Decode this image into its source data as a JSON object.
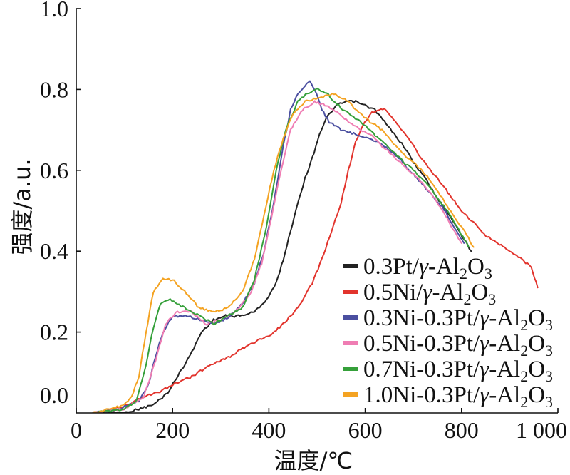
{
  "chart_data": {
    "type": "line",
    "xlabel": "温度/℃",
    "ylabel": "强度/a.u.",
    "xlim": [
      0,
      1000
    ],
    "ylim": [
      0,
      1.0
    ],
    "xticks": [
      0,
      200,
      400,
      600,
      800,
      1000
    ],
    "xtick_labels": [
      "0",
      "200",
      "400",
      "600",
      "800",
      "1 000"
    ],
    "yticks": [
      0,
      0.2,
      0.4,
      0.6,
      0.8,
      1.0
    ],
    "ytick_labels": [
      "0.0",
      "0.2",
      "0.4",
      "0.6",
      "0.8",
      "1.0"
    ],
    "grid": false,
    "legend": "bottom-right",
    "series": [
      {
        "name": "0.3Pt/γ-Al2O3",
        "color": "#222222",
        "x": [
          40,
          100,
          130,
          160,
          190,
          215,
          240,
          260,
          285,
          310,
          340,
          370,
          395,
          415,
          430,
          445,
          460,
          475,
          490,
          505,
          520,
          540,
          560,
          580,
          600,
          620,
          640,
          660,
          680,
          700,
          725,
          750,
          775,
          800,
          820
        ],
        "y": [
          0.0,
          0.0,
          0.01,
          0.02,
          0.05,
          0.1,
          0.15,
          0.2,
          0.23,
          0.24,
          0.24,
          0.25,
          0.28,
          0.32,
          0.38,
          0.45,
          0.52,
          0.58,
          0.63,
          0.69,
          0.73,
          0.76,
          0.77,
          0.77,
          0.76,
          0.75,
          0.72,
          0.69,
          0.66,
          0.62,
          0.58,
          0.53,
          0.49,
          0.44,
          0.4
        ]
      },
      {
        "name": "0.5Ni/γ-Al2O3",
        "color": "#e2342d",
        "x": [
          45,
          80,
          110,
          140,
          170,
          200,
          240,
          280,
          320,
          360,
          400,
          430,
          460,
          490,
          510,
          530,
          550,
          565,
          580,
          595,
          610,
          625,
          640,
          655,
          670,
          690,
          710,
          730,
          750,
          775,
          800,
          825,
          850,
          875,
          900,
          925,
          945,
          958
        ],
        "y": [
          0.0,
          0.01,
          0.02,
          0.04,
          0.05,
          0.07,
          0.09,
          0.12,
          0.14,
          0.17,
          0.19,
          0.22,
          0.26,
          0.32,
          0.38,
          0.45,
          0.52,
          0.6,
          0.67,
          0.71,
          0.74,
          0.75,
          0.75,
          0.73,
          0.71,
          0.68,
          0.64,
          0.61,
          0.58,
          0.54,
          0.5,
          0.47,
          0.44,
          0.42,
          0.4,
          0.38,
          0.36,
          0.31
        ]
      },
      {
        "name": "0.3Ni-0.3Pt/γ-Al2O3",
        "color": "#4b4fa0",
        "x": [
          35,
          90,
          130,
          150,
          165,
          180,
          200,
          230,
          260,
          290,
          320,
          345,
          370,
          390,
          410,
          430,
          445,
          460,
          475,
          485,
          495,
          510,
          525,
          550,
          580,
          610,
          640,
          670,
          700,
          730,
          760,
          785,
          805
        ],
        "y": [
          0.0,
          0.01,
          0.03,
          0.07,
          0.14,
          0.2,
          0.24,
          0.24,
          0.23,
          0.22,
          0.24,
          0.27,
          0.32,
          0.4,
          0.52,
          0.66,
          0.75,
          0.79,
          0.81,
          0.82,
          0.8,
          0.75,
          0.72,
          0.7,
          0.69,
          0.68,
          0.66,
          0.63,
          0.59,
          0.55,
          0.51,
          0.46,
          0.42
        ]
      },
      {
        "name": "0.5Ni-0.3Pt/γ-Al2O3",
        "color": "#ef7db3",
        "x": [
          35,
          100,
          140,
          165,
          185,
          210,
          240,
          270,
          300,
          330,
          360,
          385,
          405,
          425,
          445,
          470,
          495,
          520,
          545,
          565,
          590,
          610,
          635,
          655,
          680,
          700,
          725,
          745,
          770,
          790,
          800
        ],
        "y": [
          0.0,
          0.01,
          0.04,
          0.13,
          0.22,
          0.25,
          0.25,
          0.22,
          0.23,
          0.25,
          0.29,
          0.37,
          0.48,
          0.6,
          0.7,
          0.75,
          0.77,
          0.76,
          0.74,
          0.72,
          0.7,
          0.69,
          0.66,
          0.64,
          0.61,
          0.59,
          0.56,
          0.53,
          0.48,
          0.44,
          0.42
        ]
      },
      {
        "name": "0.7Ni-0.3Pt/γ-Al2O3",
        "color": "#35a03a",
        "x": [
          35,
          100,
          125,
          145,
          160,
          175,
          195,
          225,
          255,
          285,
          315,
          345,
          370,
          395,
          415,
          435,
          460,
          480,
          500,
          520,
          545,
          565,
          590,
          610,
          635,
          655,
          680,
          700,
          725,
          745,
          770,
          795,
          815
        ],
        "y": [
          0.0,
          0.01,
          0.03,
          0.12,
          0.21,
          0.27,
          0.28,
          0.26,
          0.24,
          0.22,
          0.24,
          0.26,
          0.33,
          0.46,
          0.6,
          0.7,
          0.77,
          0.79,
          0.8,
          0.79,
          0.76,
          0.74,
          0.72,
          0.7,
          0.67,
          0.65,
          0.62,
          0.6,
          0.57,
          0.54,
          0.5,
          0.45,
          0.41
        ]
      },
      {
        "name": "1.0Ni-0.3Pt/γ-Al2O3",
        "color": "#f4a322",
        "x": [
          35,
          70,
          100,
          115,
          130,
          145,
          160,
          180,
          200,
          225,
          255,
          285,
          315,
          345,
          370,
          390,
          410,
          430,
          450,
          475,
          505,
          535,
          565,
          590,
          610,
          635,
          655,
          680,
          700,
          725,
          745,
          770,
          800,
          825
        ],
        "y": [
          0.0,
          0.01,
          0.02,
          0.04,
          0.09,
          0.2,
          0.3,
          0.33,
          0.33,
          0.3,
          0.26,
          0.25,
          0.26,
          0.3,
          0.38,
          0.49,
          0.6,
          0.68,
          0.74,
          0.77,
          0.78,
          0.79,
          0.77,
          0.74,
          0.72,
          0.7,
          0.67,
          0.64,
          0.62,
          0.59,
          0.56,
          0.51,
          0.46,
          0.41
        ]
      }
    ]
  }
}
